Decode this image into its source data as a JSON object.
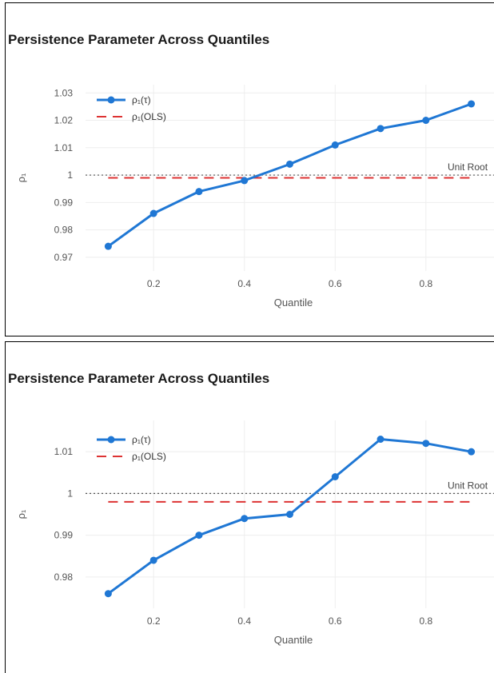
{
  "chart_data": [
    {
      "type": "line",
      "title": "Persistence Parameter Across Quantiles",
      "xlabel": "Quantile",
      "ylabel": "ρ₁",
      "xlim": [
        0.05,
        0.95
      ],
      "ylim": [
        0.965,
        1.033
      ],
      "xticks": [
        0.2,
        0.4,
        0.6,
        0.8
      ],
      "yticks": [
        0.97,
        0.98,
        0.99,
        1,
        1.01,
        1.02,
        1.03
      ],
      "grid": true,
      "legend": "top-left",
      "colors": {
        "quantile": "#1f77d4",
        "ols": "#dd3333",
        "unit_root": "#555555"
      },
      "series": [
        {
          "name": "ρ₁(τ)",
          "style": "line-markers",
          "x": [
            0.1,
            0.2,
            0.3,
            0.4,
            0.5,
            0.6,
            0.7,
            0.8,
            0.9
          ],
          "values": [
            0.974,
            0.986,
            0.994,
            0.998,
            1.004,
            1.011,
            1.017,
            1.02,
            1.026
          ]
        },
        {
          "name": "ρ₁(OLS)",
          "style": "dashed",
          "x": [
            0.1,
            0.9
          ],
          "values": [
            0.999,
            0.999
          ]
        }
      ],
      "reference_line": {
        "y": 1,
        "label": "Unit Root"
      }
    },
    {
      "type": "line",
      "title": "Persistence Parameter Across Quantiles",
      "xlabel": "Quantile",
      "ylabel": "ρ₁",
      "xlim": [
        0.05,
        0.95
      ],
      "ylim": [
        0.9725,
        1.0175
      ],
      "xticks": [
        0.2,
        0.4,
        0.6,
        0.8
      ],
      "yticks": [
        0.98,
        0.99,
        1,
        1.01
      ],
      "grid": true,
      "legend": "top-left",
      "colors": {
        "quantile": "#1f77d4",
        "ols": "#dd3333",
        "unit_root": "#555555"
      },
      "series": [
        {
          "name": "ρ₁(τ)",
          "style": "line-markers",
          "x": [
            0.1,
            0.2,
            0.3,
            0.4,
            0.5,
            0.6,
            0.7,
            0.8,
            0.9
          ],
          "values": [
            0.976,
            0.984,
            0.99,
            0.994,
            0.995,
            1.004,
            1.013,
            1.012,
            1.01
          ]
        },
        {
          "name": "ρ₁(OLS)",
          "style": "dashed",
          "x": [
            0.1,
            0.9
          ],
          "values": [
            0.998,
            0.998
          ]
        }
      ],
      "reference_line": {
        "y": 1,
        "label": "Unit Root"
      }
    }
  ]
}
